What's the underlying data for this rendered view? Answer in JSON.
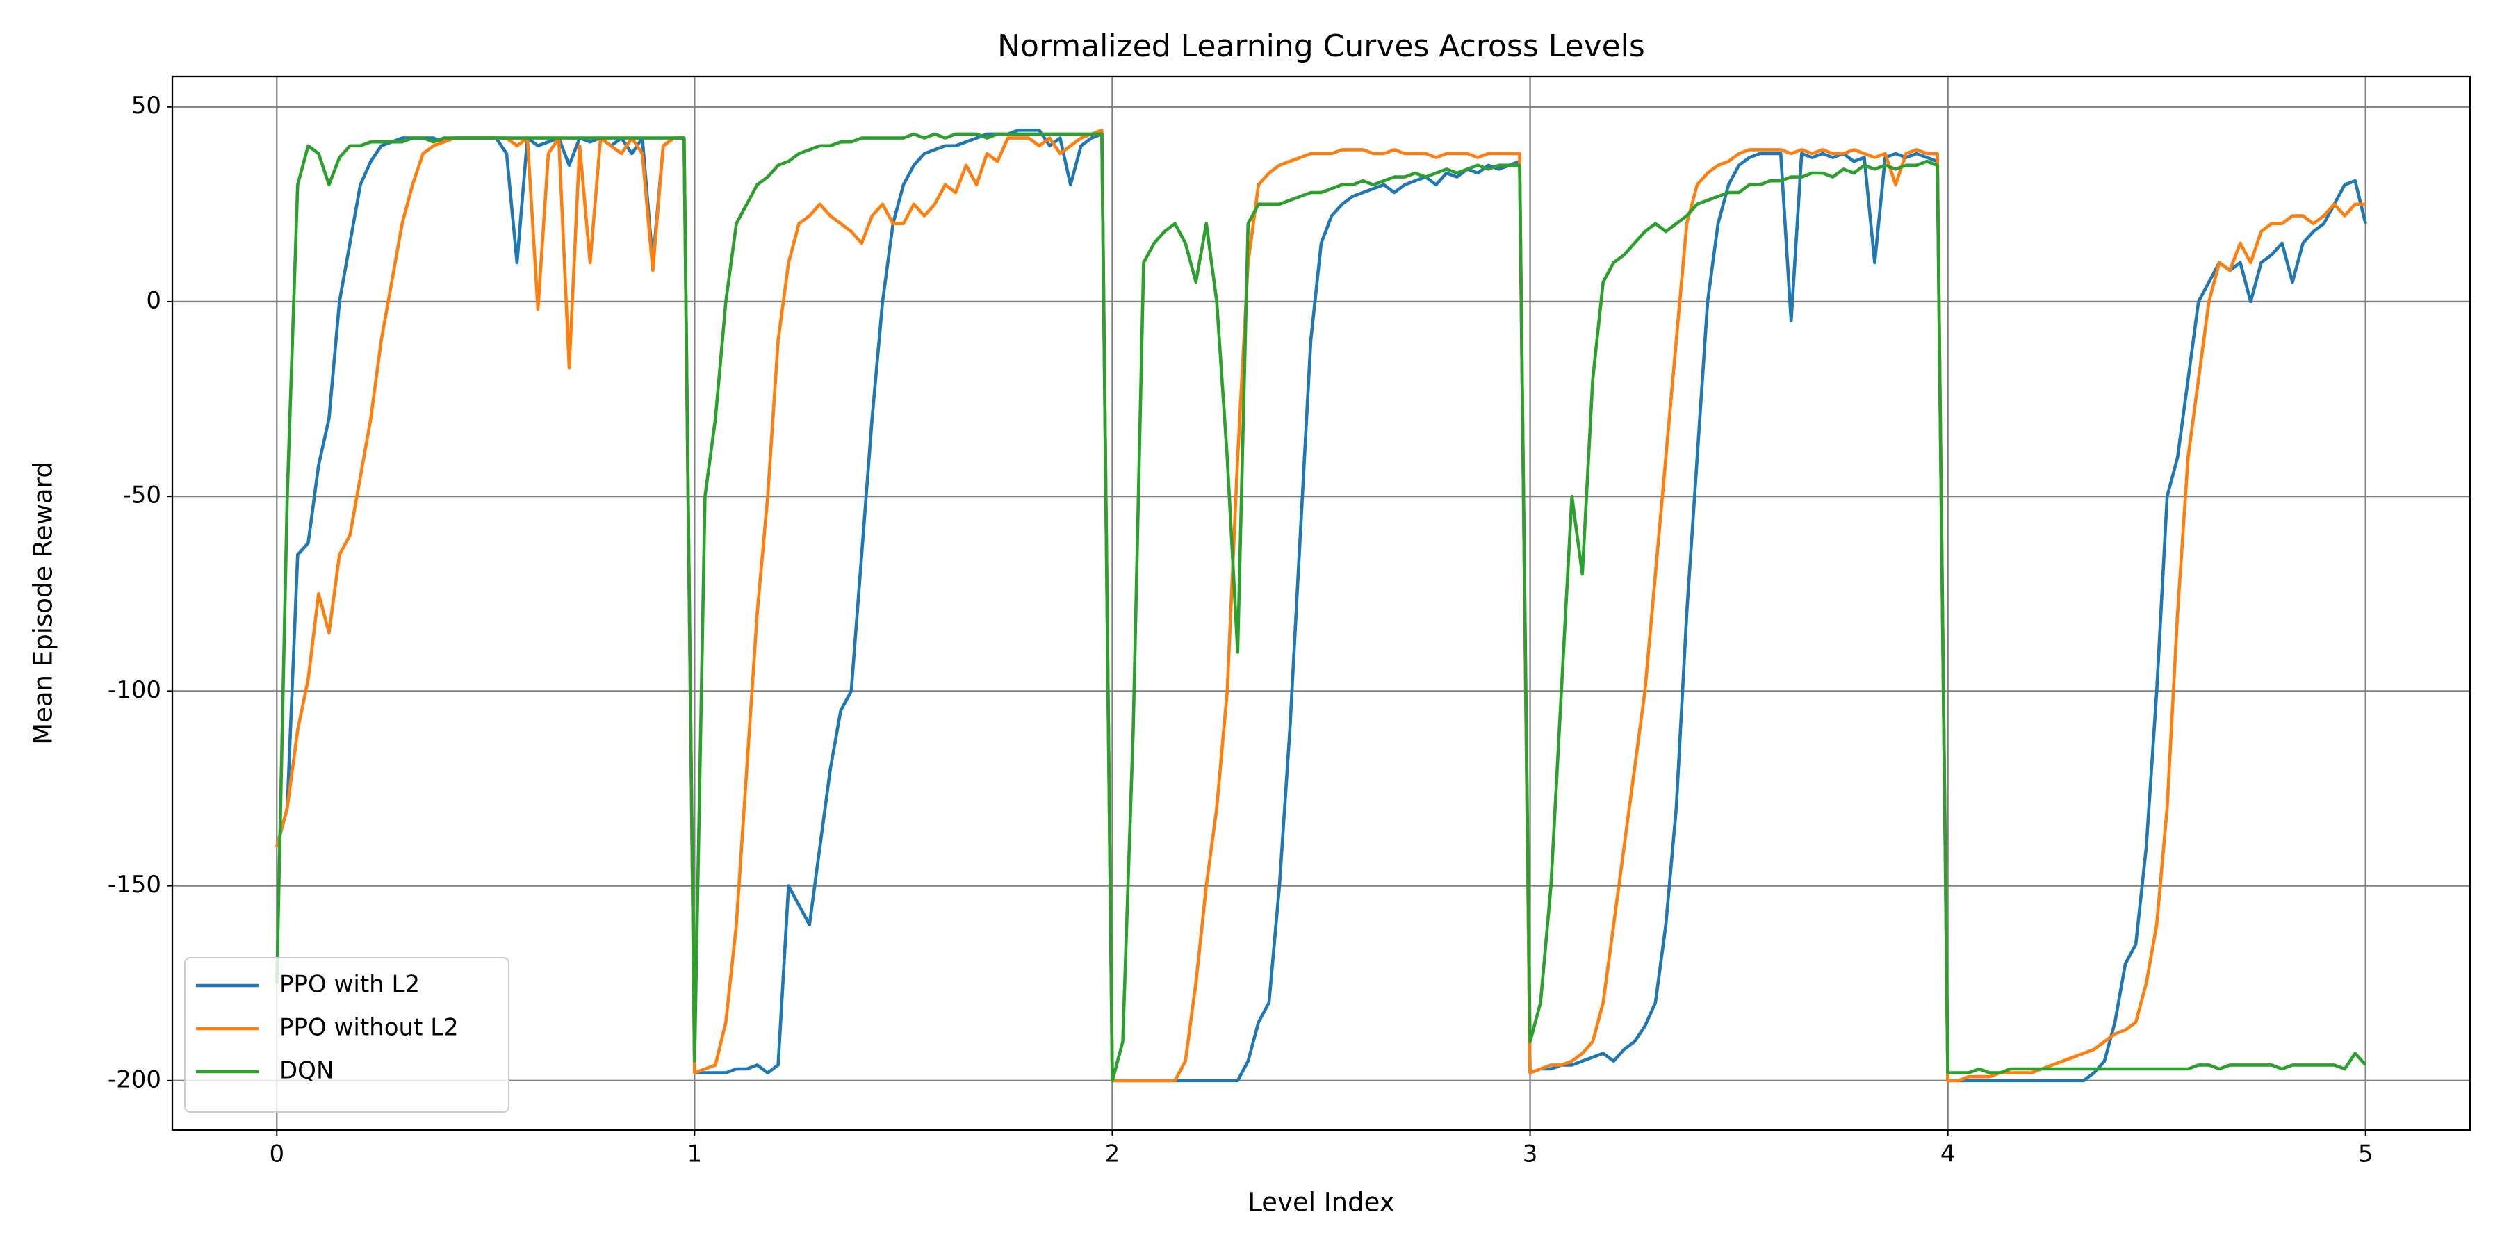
{
  "chart_data": {
    "type": "line",
    "title": "Normalized Learning Curves Across Levels",
    "x_label": "Level Index",
    "y_label": "Mean Episode Reward",
    "xlim": [
      -0.25,
      5.25
    ],
    "ylim": [
      -212.7,
      57.8
    ],
    "xticks": [
      0,
      1,
      2,
      3,
      4,
      5
    ],
    "yticks": [
      -200,
      -150,
      -100,
      -50,
      0,
      50
    ],
    "grid": true,
    "legend": "lower left",
    "x": [
      0,
      0.025,
      0.05,
      0.075,
      0.1,
      0.125,
      0.15,
      0.175,
      0.2,
      0.225,
      0.25,
      0.275,
      0.3,
      0.325,
      0.35,
      0.375,
      0.4,
      0.425,
      0.45,
      0.475,
      0.5,
      0.525,
      0.55,
      0.575,
      0.6,
      0.625,
      0.65,
      0.675,
      0.7,
      0.725,
      0.75,
      0.775,
      0.8,
      0.825,
      0.85,
      0.875,
      0.9,
      0.925,
      0.95,
      0.975,
      1,
      1.025,
      1.05,
      1.075,
      1.1,
      1.125,
      1.15,
      1.175,
      1.2,
      1.225,
      1.25,
      1.275,
      1.3,
      1.325,
      1.35,
      1.375,
      1.4,
      1.425,
      1.45,
      1.475,
      1.5,
      1.525,
      1.55,
      1.575,
      1.6,
      1.625,
      1.65,
      1.675,
      1.7,
      1.725,
      1.75,
      1.775,
      1.8,
      1.825,
      1.85,
      1.875,
      1.9,
      1.925,
      1.95,
      1.975,
      2,
      2.025,
      2.05,
      2.075,
      2.1,
      2.125,
      2.15,
      2.175,
      2.2,
      2.225,
      2.25,
      2.275,
      2.3,
      2.325,
      2.35,
      2.375,
      2.4,
      2.425,
      2.45,
      2.475,
      2.5,
      2.525,
      2.55,
      2.575,
      2.6,
      2.625,
      2.65,
      2.675,
      2.7,
      2.725,
      2.75,
      2.775,
      2.8,
      2.825,
      2.85,
      2.875,
      2.9,
      2.925,
      2.95,
      2.975,
      3,
      3.025,
      3.05,
      3.075,
      3.1,
      3.125,
      3.15,
      3.175,
      3.2,
      3.225,
      3.25,
      3.275,
      3.3,
      3.325,
      3.35,
      3.375,
      3.4,
      3.425,
      3.45,
      3.475,
      3.5,
      3.525,
      3.55,
      3.575,
      3.6,
      3.625,
      3.65,
      3.675,
      3.7,
      3.725,
      3.75,
      3.775,
      3.8,
      3.825,
      3.85,
      3.875,
      3.9,
      3.925,
      3.95,
      3.975,
      4,
      4.025,
      4.05,
      4.075,
      4.1,
      4.125,
      4.15,
      4.175,
      4.2,
      4.225,
      4.25,
      4.275,
      4.3,
      4.325,
      4.35,
      4.375,
      4.4,
      4.425,
      4.45,
      4.475,
      4.5,
      4.525,
      4.55,
      4.575,
      4.6,
      4.625,
      4.65,
      4.675,
      4.7,
      4.725,
      4.75,
      4.775,
      4.8,
      4.825,
      4.85,
      4.875,
      4.9,
      4.925,
      4.95,
      4.975,
      5
    ],
    "series": [
      {
        "name": "PPO with L2",
        "color": "#1f77b4",
        "values": [
          -140,
          -130,
          -65,
          -62,
          -42,
          -30,
          0,
          15,
          30,
          36,
          40,
          41,
          42,
          42,
          42,
          42,
          41,
          42,
          42,
          42,
          42,
          42,
          38,
          10,
          42,
          40,
          41,
          42,
          35,
          42,
          41,
          42,
          40,
          42,
          38,
          42,
          10,
          40,
          42,
          42,
          -198,
          -198,
          -198,
          -198,
          -197,
          -197,
          -196,
          -198,
          -196,
          -150,
          -155,
          -160,
          -140,
          -120,
          -105,
          -100,
          -65,
          -30,
          0,
          20,
          30,
          35,
          38,
          39,
          40,
          40,
          41,
          42,
          43,
          43,
          43,
          44,
          44,
          44,
          40,
          42,
          30,
          40,
          42,
          43,
          -200,
          -200,
          -200,
          -200,
          -200,
          -200,
          -200,
          -200,
          -200,
          -200,
          -200,
          -200,
          -200,
          -195,
          -185,
          -180,
          -150,
          -110,
          -60,
          -10,
          15,
          22,
          25,
          27,
          28,
          29,
          30,
          28,
          30,
          31,
          32,
          30,
          33,
          32,
          34,
          33,
          35,
          34,
          35,
          36,
          -198,
          -197,
          -197,
          -196,
          -196,
          -195,
          -194,
          -193,
          -195,
          -192,
          -190,
          -186,
          -180,
          -160,
          -130,
          -80,
          -40,
          0,
          20,
          30,
          35,
          37,
          38,
          38,
          38,
          -5,
          38,
          37,
          38,
          37,
          38,
          36,
          37,
          10,
          37,
          38,
          37,
          38,
          37,
          36,
          -200,
          -200,
          -200,
          -200,
          -200,
          -200,
          -200,
          -200,
          -200,
          -200,
          -200,
          -200,
          -200,
          -200,
          -198,
          -195,
          -185,
          -170,
          -165,
          -140,
          -100,
          -50,
          -40,
          -20,
          0,
          5,
          10,
          8,
          10,
          0,
          10,
          12,
          15,
          5,
          15,
          18,
          20,
          25,
          30,
          31,
          20
        ]
      },
      {
        "name": "PPO without L2",
        "color": "#ff7f0e",
        "values": [
          -140,
          -130,
          -110,
          -97,
          -75,
          -85,
          -65,
          -60,
          -45,
          -30,
          -10,
          5,
          20,
          30,
          38,
          40,
          41,
          42,
          42,
          42,
          42,
          42,
          42,
          40,
          42,
          -2,
          38,
          42,
          -17,
          40,
          10,
          42,
          40,
          38,
          42,
          38,
          8,
          40,
          42,
          42,
          -198,
          -197,
          -196,
          -185,
          -160,
          -120,
          -80,
          -50,
          -10,
          10,
          20,
          22,
          25,
          22,
          20,
          18,
          15,
          22,
          25,
          20,
          20,
          25,
          22,
          25,
          30,
          28,
          35,
          30,
          38,
          36,
          42,
          42,
          42,
          40,
          42,
          38,
          40,
          42,
          43,
          44,
          -200,
          -200,
          -200,
          -200,
          -200,
          -200,
          -200,
          -195,
          -175,
          -150,
          -130,
          -100,
          -40,
          10,
          30,
          33,
          35,
          36,
          37,
          38,
          38,
          38,
          39,
          39,
          39,
          38,
          38,
          39,
          38,
          38,
          38,
          37,
          38,
          38,
          38,
          37,
          38,
          38,
          38,
          38,
          -198,
          -197,
          -196,
          -196,
          -195,
          -193,
          -190,
          -180,
          -160,
          -140,
          -120,
          -100,
          -70,
          -40,
          -10,
          20,
          30,
          33,
          35,
          36,
          38,
          39,
          39,
          39,
          39,
          38,
          39,
          38,
          39,
          38,
          38,
          39,
          38,
          37,
          38,
          30,
          38,
          39,
          38,
          38,
          -200,
          -200,
          -199,
          -199,
          -199,
          -198,
          -198,
          -198,
          -198,
          -197,
          -196,
          -195,
          -194,
          -193,
          -192,
          -190,
          -188,
          -187,
          -185,
          -175,
          -160,
          -130,
          -80,
          -40,
          -20,
          0,
          10,
          8,
          15,
          10,
          18,
          20,
          20,
          22,
          22,
          20,
          22,
          25,
          22,
          25,
          25
        ]
      },
      {
        "name": "DQN",
        "color": "#2ca02c",
        "values": [
          -175,
          -50,
          30,
          40,
          38,
          30,
          37,
          40,
          40,
          41,
          41,
          41,
          41,
          42,
          42,
          41,
          42,
          42,
          42,
          42,
          42,
          42,
          42,
          42,
          42,
          42,
          42,
          42,
          42,
          42,
          42,
          42,
          42,
          42,
          42,
          42,
          42,
          42,
          42,
          42,
          -195,
          -50,
          -30,
          0,
          20,
          25,
          30,
          32,
          35,
          36,
          38,
          39,
          40,
          40,
          41,
          41,
          42,
          42,
          42,
          42,
          42,
          43,
          42,
          43,
          42,
          43,
          43,
          43,
          42,
          43,
          43,
          43,
          43,
          43,
          43,
          43,
          43,
          43,
          43,
          43,
          -200,
          -190,
          -110,
          10,
          15,
          18,
          20,
          15,
          5,
          20,
          0,
          -40,
          -90,
          20,
          25,
          25,
          25,
          26,
          27,
          28,
          28,
          29,
          30,
          30,
          31,
          30,
          31,
          32,
          32,
          33,
          32,
          33,
          34,
          33,
          34,
          35,
          34,
          35,
          35,
          35,
          -190,
          -180,
          -150,
          -100,
          -50,
          -70,
          -20,
          5,
          10,
          12,
          15,
          18,
          20,
          18,
          20,
          22,
          25,
          26,
          27,
          28,
          28,
          30,
          30,
          31,
          31,
          32,
          32,
          33,
          33,
          32,
          34,
          33,
          35,
          34,
          35,
          34,
          35,
          35,
          36,
          35,
          -198,
          -198,
          -198,
          -197,
          -198,
          -198,
          -197,
          -197,
          -197,
          -197,
          -197,
          -197,
          -197,
          -197,
          -197,
          -197,
          -197,
          -197,
          -197,
          -197,
          -197,
          -197,
          -197,
          -197,
          -196,
          -196,
          -197,
          -196,
          -196,
          -196,
          -196,
          -196,
          -197,
          -196,
          -196,
          -196,
          -196,
          -196,
          -197,
          -193,
          -196
        ]
      }
    ]
  }
}
